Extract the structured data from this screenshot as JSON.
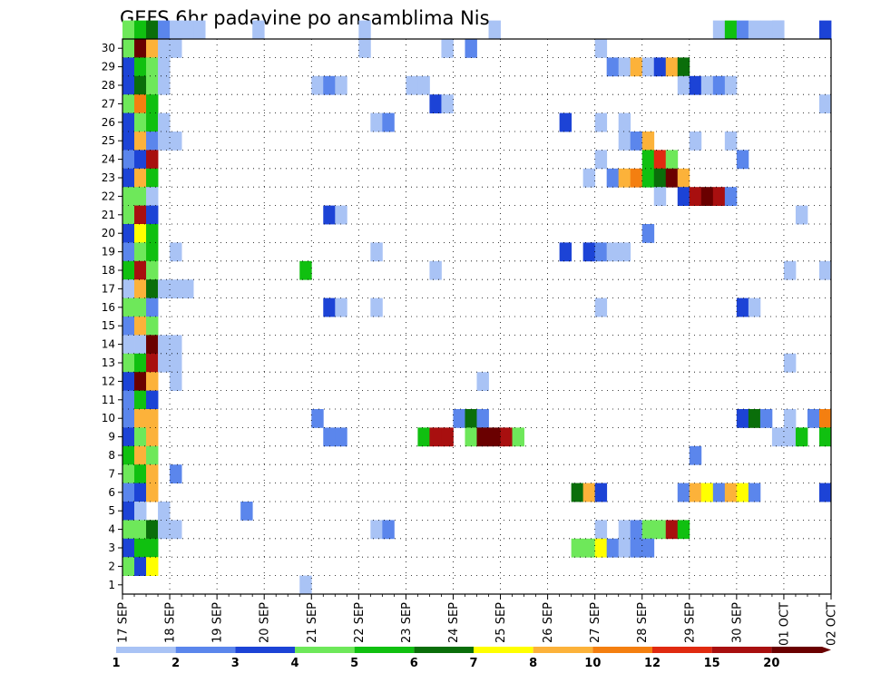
{
  "chart_data": {
    "type": "heatmap",
    "title": "GEFS 6hr padavine po ansamblima Nis",
    "xlabel": "",
    "ylabel": "",
    "y_tick_labels": [
      "1",
      "2",
      "3",
      "4",
      "5",
      "6",
      "7",
      "8",
      "9",
      "10",
      "11",
      "12",
      "13",
      "14",
      "15",
      "16",
      "17",
      "18",
      "19",
      "20",
      "21",
      "22",
      "23",
      "24",
      "25",
      "26",
      "27",
      "28",
      "29",
      "30"
    ],
    "ylim": [
      0,
      30
    ],
    "x_tick_labels": [
      "17 SEP",
      "18 SEP",
      "19 SEP",
      "20 SEP",
      "21 SEP",
      "22 SEP",
      "23 SEP",
      "24 SEP",
      "25 SEP",
      "26 SEP",
      "27 SEP",
      "28 SEP",
      "29 SEP",
      "30 SEP",
      "01 OCT",
      "02 OCT"
    ],
    "x_time_steps_per_day": 4,
    "x_total_steps": 60,
    "grid": "dotted",
    "colorbar": {
      "position": "bottom",
      "labels": [
        "1",
        "2",
        "3",
        "4",
        "5",
        "6",
        "7",
        "8",
        "10",
        "12",
        "15",
        "20"
      ],
      "colors": [
        "#a9c3f5",
        "#5b86ec",
        "#1c43d6",
        "#6ee85a",
        "#10c010",
        "#0a6e0a",
        "#ffff00",
        "#fcb23a",
        "#f47f10",
        "#e02a10",
        "#a80f0f",
        "#6a0000"
      ]
    },
    "cells": [
      [
        0,
        30,
        4
      ],
      [
        1,
        30,
        5
      ],
      [
        2,
        30,
        6
      ],
      [
        3,
        30,
        2
      ],
      [
        4,
        30,
        1
      ],
      [
        5,
        30,
        1
      ],
      [
        6,
        30,
        1
      ],
      [
        55,
        30,
        2
      ],
      [
        55,
        30,
        1
      ],
      [
        11,
        30,
        1
      ],
      [
        20,
        30,
        1
      ],
      [
        31,
        30,
        1
      ],
      [
        50,
        30,
        1
      ],
      [
        51,
        30,
        5
      ],
      [
        52,
        30,
        2
      ],
      [
        53,
        30,
        1
      ],
      [
        54,
        30,
        1
      ],
      [
        59,
        30,
        3
      ],
      [
        0,
        29,
        4
      ],
      [
        1,
        29,
        12
      ],
      [
        2,
        29,
        8
      ],
      [
        3,
        29,
        1
      ],
      [
        4,
        29,
        1
      ],
      [
        20,
        29,
        1
      ],
      [
        27,
        29,
        1
      ],
      [
        29,
        29,
        2
      ],
      [
        40,
        29,
        1
      ],
      [
        0,
        28,
        3
      ],
      [
        1,
        28,
        5
      ],
      [
        2,
        28,
        4
      ],
      [
        3,
        28,
        1
      ],
      [
        41,
        28,
        2
      ],
      [
        42,
        28,
        1
      ],
      [
        43,
        28,
        8
      ],
      [
        44,
        28,
        1
      ],
      [
        45,
        28,
        3
      ],
      [
        46,
        28,
        8
      ],
      [
        47,
        28,
        6
      ],
      [
        0,
        27,
        3
      ],
      [
        1,
        27,
        6
      ],
      [
        2,
        27,
        4
      ],
      [
        3,
        27,
        1
      ],
      [
        16,
        27,
        1
      ],
      [
        17,
        27,
        2
      ],
      [
        18,
        27,
        1
      ],
      [
        24,
        27,
        1
      ],
      [
        25,
        27,
        1
      ],
      [
        47,
        27,
        1
      ],
      [
        48,
        27,
        3
      ],
      [
        49,
        27,
        1
      ],
      [
        50,
        27,
        2
      ],
      [
        51,
        27,
        1
      ],
      [
        0,
        26,
        4
      ],
      [
        1,
        26,
        9
      ],
      [
        2,
        26,
        5
      ],
      [
        26,
        26,
        3
      ],
      [
        27,
        26,
        1
      ],
      [
        59,
        26,
        1
      ],
      [
        0,
        25,
        3
      ],
      [
        1,
        25,
        4
      ],
      [
        2,
        25,
        5
      ],
      [
        3,
        25,
        1
      ],
      [
        21,
        25,
        1
      ],
      [
        22,
        25,
        2
      ],
      [
        37,
        25,
        3
      ],
      [
        40,
        25,
        1
      ],
      [
        42,
        25,
        1
      ],
      [
        0,
        24,
        3
      ],
      [
        1,
        24,
        8
      ],
      [
        2,
        24,
        2
      ],
      [
        3,
        24,
        1
      ],
      [
        4,
        24,
        1
      ],
      [
        42,
        24,
        1
      ],
      [
        43,
        24,
        2
      ],
      [
        44,
        24,
        8
      ],
      [
        48,
        24,
        1
      ],
      [
        51,
        24,
        1
      ],
      [
        0,
        23,
        2
      ],
      [
        1,
        23,
        3
      ],
      [
        2,
        23,
        11
      ],
      [
        40,
        23,
        1
      ],
      [
        44,
        23,
        5
      ],
      [
        45,
        23,
        10
      ],
      [
        46,
        23,
        4
      ],
      [
        52,
        23,
        2
      ],
      [
        0,
        22,
        3
      ],
      [
        1,
        22,
        8
      ],
      [
        2,
        22,
        5
      ],
      [
        39,
        22,
        1
      ],
      [
        41,
        22,
        2
      ],
      [
        42,
        22,
        8
      ],
      [
        43,
        22,
        9
      ],
      [
        44,
        22,
        5
      ],
      [
        45,
        22,
        6
      ],
      [
        46,
        22,
        12
      ],
      [
        47,
        22,
        8
      ],
      [
        0,
        21,
        4
      ],
      [
        1,
        21,
        4
      ],
      [
        2,
        21,
        1
      ],
      [
        45,
        21,
        1
      ],
      [
        47,
        21,
        3
      ],
      [
        48,
        21,
        11
      ],
      [
        49,
        21,
        12
      ],
      [
        50,
        21,
        11
      ],
      [
        51,
        21,
        2
      ],
      [
        0,
        20,
        4
      ],
      [
        1,
        20,
        11
      ],
      [
        2,
        20,
        3
      ],
      [
        17,
        20,
        3
      ],
      [
        18,
        20,
        1
      ],
      [
        57,
        20,
        1
      ],
      [
        0,
        19,
        3
      ],
      [
        1,
        19,
        7
      ],
      [
        2,
        19,
        5
      ],
      [
        44,
        19,
        2
      ],
      [
        0,
        18,
        2
      ],
      [
        1,
        18,
        4
      ],
      [
        2,
        18,
        5
      ],
      [
        4,
        18,
        1
      ],
      [
        21,
        18,
        1
      ],
      [
        37,
        18,
        3
      ],
      [
        39,
        18,
        3
      ],
      [
        40,
        18,
        2
      ],
      [
        41,
        18,
        1
      ],
      [
        42,
        18,
        1
      ],
      [
        0,
        17,
        5
      ],
      [
        1,
        17,
        11
      ],
      [
        2,
        17,
        4
      ],
      [
        15,
        17,
        5
      ],
      [
        26,
        17,
        1
      ],
      [
        56,
        17,
        1
      ],
      [
        59,
        17,
        1
      ],
      [
        0,
        16,
        1
      ],
      [
        1,
        16,
        8
      ],
      [
        2,
        16,
        6
      ],
      [
        3,
        16,
        1
      ],
      [
        4,
        16,
        1
      ],
      [
        5,
        16,
        1
      ],
      [
        0,
        15,
        4
      ],
      [
        1,
        15,
        4
      ],
      [
        2,
        15,
        2
      ],
      [
        17,
        15,
        3
      ],
      [
        18,
        15,
        1
      ],
      [
        21,
        15,
        1
      ],
      [
        40,
        15,
        1
      ],
      [
        52,
        15,
        3
      ],
      [
        53,
        15,
        1
      ],
      [
        0,
        14,
        2
      ],
      [
        1,
        14,
        8
      ],
      [
        2,
        14,
        4
      ],
      [
        0,
        13,
        1
      ],
      [
        1,
        13,
        1
      ],
      [
        2,
        13,
        12
      ],
      [
        3,
        13,
        1
      ],
      [
        4,
        13,
        1
      ],
      [
        0,
        12,
        4
      ],
      [
        1,
        12,
        5
      ],
      [
        2,
        12,
        11
      ],
      [
        3,
        12,
        1
      ],
      [
        4,
        12,
        1
      ],
      [
        56,
        12,
        1
      ],
      [
        0,
        11,
        3
      ],
      [
        1,
        11,
        12
      ],
      [
        2,
        11,
        8
      ],
      [
        4,
        11,
        1
      ],
      [
        30,
        11,
        1
      ],
      [
        0,
        10,
        2
      ],
      [
        1,
        10,
        5
      ],
      [
        2,
        10,
        3
      ],
      [
        0,
        9,
        2
      ],
      [
        1,
        9,
        8
      ],
      [
        2,
        9,
        8
      ],
      [
        16,
        9,
        2
      ],
      [
        28,
        9,
        2
      ],
      [
        29,
        9,
        6
      ],
      [
        30,
        9,
        2
      ],
      [
        52,
        9,
        3
      ],
      [
        53,
        9,
        6
      ],
      [
        54,
        9,
        2
      ],
      [
        56,
        9,
        1
      ],
      [
        58,
        9,
        2
      ],
      [
        59,
        9,
        9
      ],
      [
        0,
        8,
        3
      ],
      [
        1,
        8,
        4
      ],
      [
        2,
        8,
        8
      ],
      [
        17,
        8,
        2
      ],
      [
        18,
        8,
        2
      ],
      [
        25,
        8,
        5
      ],
      [
        26,
        8,
        11
      ],
      [
        27,
        8,
        11
      ],
      [
        29,
        8,
        4
      ],
      [
        30,
        8,
        12
      ],
      [
        31,
        8,
        12
      ],
      [
        32,
        8,
        11
      ],
      [
        33,
        8,
        4
      ],
      [
        55,
        8,
        1
      ],
      [
        56,
        8,
        1
      ],
      [
        57,
        8,
        5
      ],
      [
        59,
        8,
        5
      ],
      [
        0,
        7,
        5
      ],
      [
        1,
        7,
        8
      ],
      [
        2,
        7,
        4
      ],
      [
        48,
        7,
        2
      ],
      [
        0,
        6,
        4
      ],
      [
        1,
        6,
        5
      ],
      [
        2,
        6,
        8
      ],
      [
        4,
        6,
        2
      ],
      [
        0,
        5,
        2
      ],
      [
        1,
        5,
        3
      ],
      [
        2,
        5,
        8
      ],
      [
        38,
        5,
        6
      ],
      [
        39,
        5,
        8
      ],
      [
        40,
        5,
        3
      ],
      [
        47,
        5,
        2
      ],
      [
        48,
        5,
        8
      ],
      [
        49,
        5,
        7
      ],
      [
        50,
        5,
        2
      ],
      [
        51,
        5,
        8
      ],
      [
        52,
        5,
        7
      ],
      [
        53,
        5,
        2
      ],
      [
        59,
        5,
        3
      ],
      [
        0,
        4,
        3
      ],
      [
        1,
        4,
        1
      ],
      [
        3,
        4,
        1
      ],
      [
        10,
        4,
        2
      ],
      [
        0,
        3,
        4
      ],
      [
        1,
        3,
        4
      ],
      [
        2,
        3,
        6
      ],
      [
        3,
        3,
        1
      ],
      [
        4,
        3,
        1
      ],
      [
        21,
        3,
        1
      ],
      [
        22,
        3,
        2
      ],
      [
        40,
        3,
        1
      ],
      [
        42,
        3,
        1
      ],
      [
        43,
        3,
        2
      ],
      [
        44,
        3,
        4
      ],
      [
        45,
        3,
        4
      ],
      [
        46,
        3,
        11
      ],
      [
        47,
        3,
        5
      ],
      [
        0,
        2,
        3
      ],
      [
        1,
        2,
        5
      ],
      [
        2,
        2,
        5
      ],
      [
        38,
        2,
        4
      ],
      [
        39,
        2,
        4
      ],
      [
        40,
        2,
        7
      ],
      [
        41,
        2,
        2
      ],
      [
        42,
        2,
        1
      ],
      [
        43,
        2,
        2
      ],
      [
        44,
        2,
        2
      ],
      [
        0,
        1,
        4
      ],
      [
        1,
        1,
        3
      ],
      [
        2,
        1,
        7
      ],
      [
        15,
        0,
        1
      ]
    ]
  }
}
